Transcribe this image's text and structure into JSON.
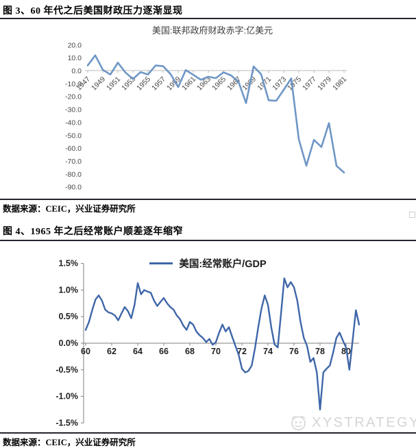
{
  "section1": {
    "title": "图 3、60 年代之后美国财政压力逐渐显现",
    "source": "数据来源：CEIC，兴业证券研究所"
  },
  "section2": {
    "title": "图 4、1965 年之后经常账户顺差逐年缩窄",
    "source": "数据来源：CEIC，兴业证券研究所"
  },
  "watermark": {
    "text": "XYSTRATEGY"
  },
  "colors": {
    "chart1_line": "#6e96c6",
    "chart2_line": "#3e66a8",
    "axis_gray": "#b9b9b9",
    "axis_dark": "#7f7f7f",
    "rule_dark": "#23232c"
  },
  "chart_data": [
    {
      "type": "line",
      "title": "美国:联邦政府财政赤字:亿美元",
      "xlabel": "",
      "ylabel": "亿美元",
      "x_start": 1947,
      "x_step": 1,
      "values": [
        4.0,
        11.8,
        0.6,
        -3.1,
        6.1,
        -1.5,
        -6.5,
        -1.2,
        -3.0,
        3.9,
        3.4,
        -2.8,
        -12.8,
        0.3,
        -3.3,
        -7.1,
        -4.8,
        -5.9,
        -1.4,
        -3.7,
        -8.6,
        -25.2,
        3.2,
        -2.8,
        -23.0,
        -23.4,
        -14.9,
        -6.1,
        -53.2,
        -73.7,
        -53.7,
        -59.2,
        -40.7,
        -73.8,
        -79.0
      ],
      "x_tick_labels": [
        "1947",
        "1949",
        "1951",
        "1953",
        "1955",
        "1957",
        "1959",
        "1961",
        "1963",
        "1965",
        "1967",
        "1969",
        "1971",
        "1973",
        "1975",
        "1977",
        "1979",
        "1981"
      ],
      "y_tick_labels": [
        "20.0",
        "10.0",
        "0.0",
        "-10.0",
        "-20.0",
        "-30.0",
        "-40.0",
        "-50.0",
        "-60.0",
        "-70.0",
        "-80.0",
        "-90.0"
      ],
      "ylim": [
        -90,
        20
      ],
      "grid": false,
      "legend_position": "none",
      "line_color": "#6e96c6"
    },
    {
      "type": "line",
      "legend": "美国:经常账户/GDP",
      "legend_position": "top-center",
      "x_start": 1960,
      "x_step": 0.25,
      "values": [
        0.25,
        0.4,
        0.62,
        0.82,
        0.9,
        0.8,
        0.63,
        0.58,
        0.56,
        0.52,
        0.43,
        0.56,
        0.68,
        0.6,
        0.47,
        0.72,
        1.13,
        0.92,
        1.0,
        0.97,
        0.95,
        0.8,
        0.7,
        0.78,
        0.85,
        0.75,
        0.68,
        0.63,
        0.52,
        0.45,
        0.33,
        0.25,
        0.4,
        0.35,
        0.22,
        0.15,
        0.1,
        0.02,
        0.08,
        -0.03,
        0.02,
        0.2,
        0.35,
        0.22,
        0.3,
        0.12,
        -0.05,
        -0.22,
        -0.48,
        -0.55,
        -0.52,
        -0.42,
        -0.1,
        0.3,
        0.65,
        0.9,
        0.72,
        0.3,
        -0.02,
        -0.08,
        0.55,
        1.22,
        1.05,
        1.15,
        1.05,
        0.8,
        0.4,
        0.1,
        -0.05,
        -0.35,
        -0.28,
        -0.55,
        -1.25,
        -0.55,
        -0.48,
        -0.42,
        -0.18,
        0.1,
        0.2,
        0.05,
        -0.08,
        -0.5,
        0.05,
        0.62,
        0.35
      ],
      "x_tick_labels": [
        "60",
        "62",
        "64",
        "66",
        "68",
        "70",
        "72",
        "74",
        "76",
        "78",
        "80"
      ],
      "y_tick_labels": [
        "1.5%",
        "1.0%",
        "0.5%",
        "0.0%",
        "-0.5%",
        "-1.0%",
        "-1.5%"
      ],
      "ylim": [
        -1.5,
        1.5
      ],
      "grid": false,
      "line_color": "#3e66a8"
    }
  ]
}
